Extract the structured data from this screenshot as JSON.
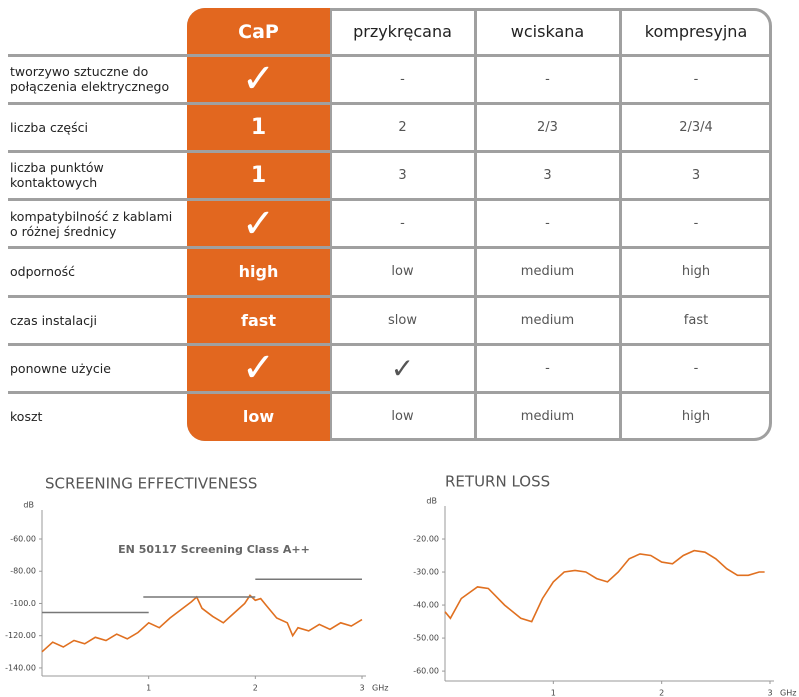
{
  "table": {
    "header": [
      "CaP",
      "przykręcana",
      "wciskana",
      "kompresyjna"
    ],
    "rows": [
      {
        "label": "tworzywo sztuczne do połączenia elektrycznego",
        "cells": [
          "✓",
          "-",
          "-",
          "-"
        ]
      },
      {
        "label": "liczba części",
        "cells": [
          "1",
          "2",
          "2/3",
          "2/3/4"
        ]
      },
      {
        "label": "liczba punktów kontaktowych",
        "cells": [
          "1",
          "3",
          "3",
          "3"
        ]
      },
      {
        "label": "kompatybilność z kablami o różnej średnicy",
        "cells": [
          "✓",
          "-",
          "-",
          "-"
        ]
      },
      {
        "label": "odporność",
        "cells": [
          "high",
          "low",
          "medium",
          "high"
        ]
      },
      {
        "label": "czas instalacji",
        "cells": [
          "fast",
          "slow",
          "medium",
          "fast"
        ]
      },
      {
        "label": "ponowne użycie",
        "cells": [
          "✓",
          "✓",
          "-",
          "-"
        ]
      },
      {
        "label": "koszt",
        "cells": [
          "low",
          "low",
          "medium",
          "high"
        ]
      }
    ]
  },
  "chart_data": [
    {
      "type": "line",
      "title": "SCREENING EFFECTIVENESS",
      "annotation": "EN 50117 Screening Class A++",
      "xlabel": "GHz",
      "ylabel": "dB",
      "xlim": [
        0,
        3
      ],
      "xticks": [
        1,
        2,
        3
      ],
      "ylim": [
        -145,
        -42
      ],
      "yticks": [
        {
          "value": -60,
          "label": "-60.00"
        },
        {
          "value": -80,
          "label": "-80.00"
        },
        {
          "value": -100,
          "label": "-100.0"
        },
        {
          "value": -120,
          "label": "-120.00"
        },
        {
          "value": -140,
          "label": "-140.00"
        }
      ],
      "series": [
        {
          "color": "#e07020",
          "x": [
            0,
            0.1,
            0.2,
            0.3,
            0.4,
            0.5,
            0.6,
            0.7,
            0.8,
            0.9,
            1.0,
            1.1,
            1.2,
            1.3,
            1.4,
            1.45,
            1.5,
            1.6,
            1.7,
            1.8,
            1.9,
            1.95,
            2.0,
            2.05,
            2.1,
            2.2,
            2.3,
            2.35,
            2.4,
            2.5,
            2.6,
            2.7,
            2.8,
            2.9,
            3.0
          ],
          "values": [
            -130,
            -124,
            -127,
            -123,
            -125,
            -121,
            -123,
            -119,
            -122,
            -118,
            -112,
            -115,
            -109,
            -104,
            -99,
            -96,
            -103,
            -108,
            -112,
            -106,
            -100,
            -95,
            -98,
            -97,
            -101,
            -109,
            -112,
            -120,
            -115,
            -117,
            -113,
            -116,
            -112,
            -114,
            -110
          ]
        },
        {
          "color": "#777777",
          "x": [
            0,
            1
          ],
          "values": [
            -105.6,
            -105.6
          ]
        },
        {
          "color": "#777777",
          "x": [
            0.95,
            2.0
          ],
          "values": [
            -96,
            -96
          ]
        },
        {
          "color": "#777777",
          "x": [
            2.0,
            3.0
          ],
          "values": [
            -85,
            -85
          ]
        }
      ]
    },
    {
      "type": "line",
      "title": "RETURN LOSS",
      "xlabel": "GHz",
      "ylabel": "dB",
      "xlim": [
        0,
        3
      ],
      "xticks": [
        1,
        2,
        3
      ],
      "ylim": [
        -63,
        -10
      ],
      "yticks": [
        {
          "value": -20,
          "label": "-20.00"
        },
        {
          "value": -30,
          "label": "-30.00"
        },
        {
          "value": -40,
          "label": "-40.00"
        },
        {
          "value": -50,
          "label": "-50.00"
        },
        {
          "value": -60,
          "label": "-60.00"
        }
      ],
      "series": [
        {
          "color": "#e07020",
          "x": [
            0,
            0.05,
            0.15,
            0.3,
            0.4,
            0.55,
            0.7,
            0.8,
            0.9,
            1.0,
            1.1,
            1.2,
            1.3,
            1.4,
            1.5,
            1.6,
            1.7,
            1.8,
            1.9,
            2.0,
            2.1,
            2.2,
            2.3,
            2.4,
            2.5,
            2.6,
            2.7,
            2.8,
            2.9,
            2.95
          ],
          "values": [
            -42,
            -44,
            -38,
            -34.5,
            -35,
            -40,
            -44,
            -45,
            -38,
            -33,
            -30,
            -29.5,
            -30,
            -32,
            -33,
            -30,
            -26,
            -24.5,
            -25,
            -27,
            -27.5,
            -25,
            -23.5,
            -24,
            -26,
            -29,
            -31,
            -31,
            -30,
            -30
          ]
        }
      ]
    }
  ]
}
